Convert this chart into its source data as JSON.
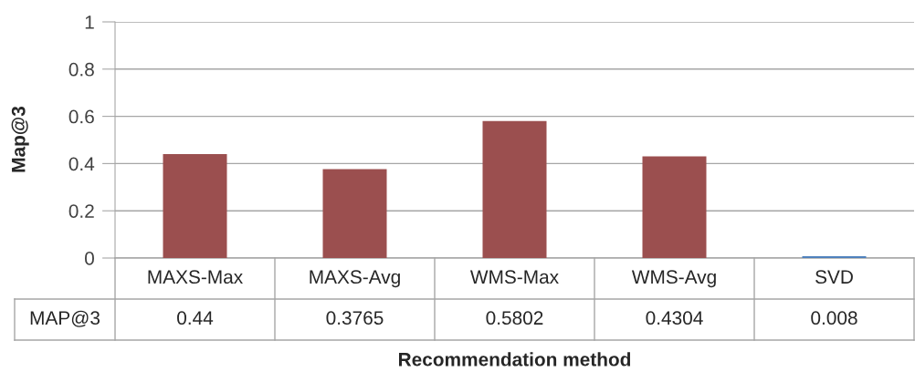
{
  "chart_data": {
    "type": "bar",
    "xlabel": "Recommendation method",
    "ylabel": "Map@3",
    "categories": [
      "MAXS-Max",
      "MAXS-Avg",
      "WMS-Max",
      "WMS-Avg",
      "SVD"
    ],
    "series": [
      {
        "name": "MAP@3",
        "colors": [
          "#9b4f4f",
          "#9b4f4f",
          "#9b4f4f",
          "#9b4f4f",
          "#4f81bd"
        ],
        "values": [
          0.44,
          0.3765,
          0.5802,
          0.4304,
          0.008
        ]
      }
    ],
    "ylim": [
      0,
      1
    ],
    "yticks": [
      0,
      0.2,
      0.4,
      0.6,
      0.8,
      1
    ],
    "grid": "y",
    "data_labels": true,
    "legend": false
  }
}
